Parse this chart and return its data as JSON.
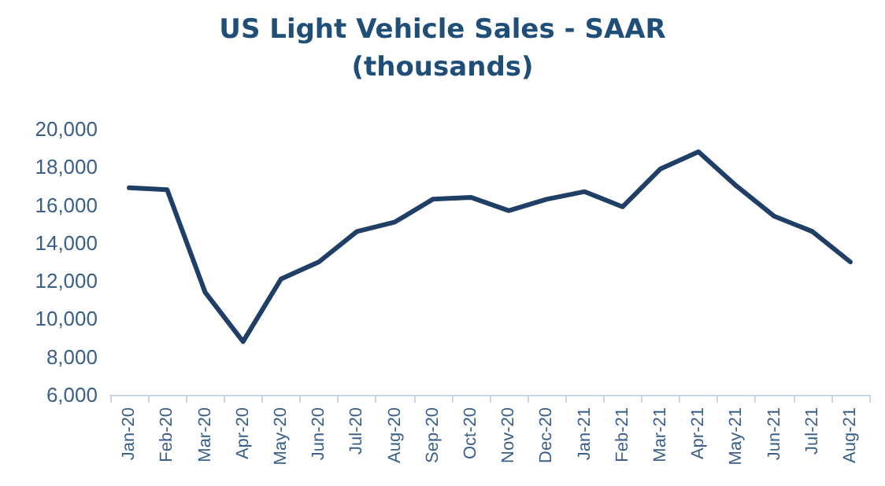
{
  "chart_data": {
    "type": "line",
    "title": "US Light Vehicle Sales - SAAR\n(thousands)",
    "categories": [
      "Jan-20",
      "Feb-20",
      "Mar-20",
      "Apr-20",
      "May-20",
      "Jun-20",
      "Jul-20",
      "Aug-20",
      "Sep-20",
      "Oct-20",
      "Nov-20",
      "Dec-20",
      "Jan-21",
      "Feb-21",
      "Mar-21",
      "Apr-21",
      "May-21",
      "Jun-21",
      "Jul-21",
      "Aug-21"
    ],
    "series": [
      {
        "color": "#1f3f66",
        "values": [
          16900,
          16800,
          11400,
          8800,
          12100,
          13000,
          14600,
          15100,
          16300,
          16400,
          15700,
          16300,
          16700,
          15900,
          17900,
          18800,
          17000,
          15400,
          14600,
          13000
        ]
      }
    ],
    "ylim": [
      6000,
      20000
    ],
    "yticks": [
      {
        "value": 6000,
        "label": "6,000"
      },
      {
        "value": 8000,
        "label": "8,000"
      },
      {
        "value": 10000,
        "label": "10,000"
      },
      {
        "value": 12000,
        "label": "12,000"
      },
      {
        "value": 14000,
        "label": "14,000"
      },
      {
        "value": 16000,
        "label": "16,000"
      },
      {
        "value": 18000,
        "label": "18,000"
      },
      {
        "value": 20000,
        "label": "20,000"
      }
    ],
    "grid": false,
    "marker": "none",
    "line_style": "solid"
  }
}
